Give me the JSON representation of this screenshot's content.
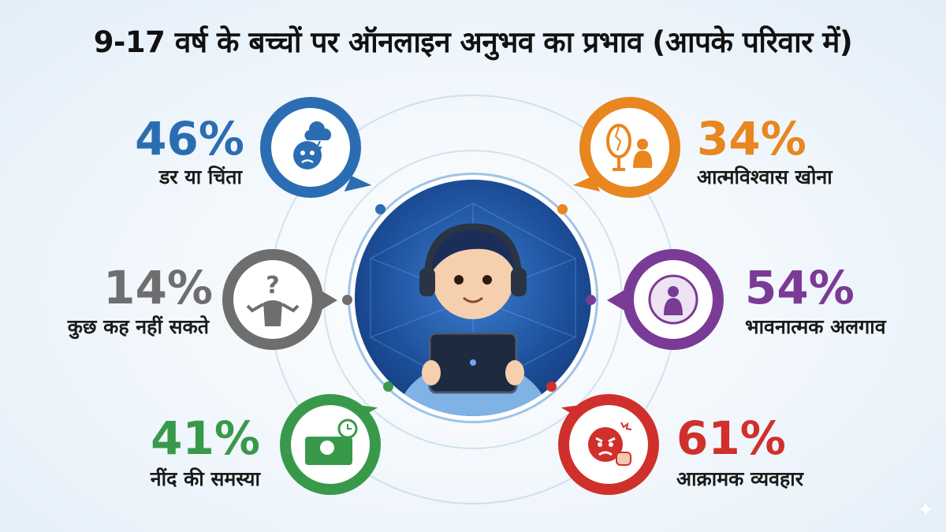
{
  "title": "9-17 वर्ष के बच्चों पर ऑनलाइन अनुभव का प्रभाव (आपके परिवार में)",
  "stats": [
    {
      "percent": "46%",
      "label": "डर या चिंता",
      "color": "#2b6db3",
      "icon": "anxious-face-storm-icon"
    },
    {
      "percent": "34%",
      "label": "आत्मविश्वास खोना",
      "color": "#e8861f",
      "icon": "broken-mirror-sad-child-icon"
    },
    {
      "percent": "14%",
      "label": "कुछ कह नहीं सकते",
      "color": "#6e6e6e",
      "icon": "shrugging-person-question-icon"
    },
    {
      "percent": "54%",
      "label": "भावनात्मक अलगाव",
      "color": "#7a3b96",
      "icon": "isolated-child-bubble-icon"
    },
    {
      "percent": "41%",
      "label": "नींद की समस्या",
      "color": "#38994a",
      "icon": "sleepless-bed-clock-icon"
    },
    {
      "percent": "61%",
      "label": "आक्रामक व्यवहार",
      "color": "#d0302b",
      "icon": "angry-face-fist-icon"
    }
  ]
}
